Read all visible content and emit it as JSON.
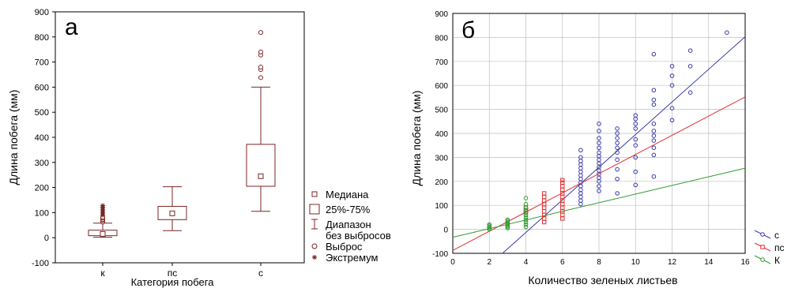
{
  "colors": {
    "box": "#7b2424",
    "axis": "#000000",
    "grid": "#bfbfbf",
    "series_c": "#3b3ba8",
    "series_pc": "#e03030",
    "series_k": "#2e9b2e"
  },
  "chart_data": [
    {
      "type": "box",
      "panel_label": "а",
      "title": "",
      "xlabel": "Категория побега",
      "ylabel": "Длина побега (мм)",
      "ylim": [
        -100,
        900
      ],
      "yticks": [
        -100,
        0,
        100,
        200,
        300,
        400,
        500,
        600,
        700,
        800,
        900
      ],
      "categories": [
        "к",
        "пс",
        "с"
      ],
      "grid": false,
      "legend_position": "right",
      "legend": [
        {
          "symbol": "small-square",
          "label": "Медиана"
        },
        {
          "symbol": "box",
          "label": "25%-75%"
        },
        {
          "symbol": "whisker",
          "label": "Диапазон"
        },
        {
          "symbol": "whisker",
          "label": "без выбросов"
        },
        {
          "symbol": "circle",
          "label": "Выброс"
        },
        {
          "symbol": "asterisk",
          "label": "Экстремум"
        }
      ],
      "boxes": [
        {
          "category": "к",
          "whisker_low": 2,
          "q1": 8,
          "median": 15,
          "q3": 30,
          "whisker_high": 58,
          "outliers": [
            62,
            68,
            72,
            78,
            82
          ],
          "extremes": [
            90,
            98,
            105,
            112,
            120,
            128
          ]
        },
        {
          "category": "пс",
          "whisker_low": 28,
          "q1": 72,
          "median": 97,
          "q3": 125,
          "whisker_high": 203,
          "outliers": [],
          "extremes": []
        },
        {
          "category": "с",
          "whisker_low": 105,
          "q1": 205,
          "median": 245,
          "q3": 372,
          "whisker_high": 600,
          "outliers": [
            638,
            670,
            680,
            728,
            740,
            818
          ],
          "extremes": []
        }
      ]
    },
    {
      "type": "scatter",
      "panel_label": "б",
      "title": "",
      "xlabel": "Количество зеленых листьев",
      "ylabel": "Длина побега (мм)",
      "xlim": [
        0,
        16
      ],
      "ylim": [
        -100,
        900
      ],
      "xticks": [
        0,
        2,
        4,
        6,
        8,
        10,
        12,
        14,
        16
      ],
      "yticks": [
        -100,
        0,
        100,
        200,
        300,
        400,
        500,
        600,
        700,
        800,
        900
      ],
      "grid": true,
      "legend_position": "bottom-right",
      "series": [
        {
          "name": "с",
          "color": "#3b3ba8",
          "marker": "circle",
          "fit": {
            "slope": 68,
            "intercept": -285
          },
          "points": [
            [
              7,
              105
            ],
            [
              7,
              120
            ],
            [
              7,
              135
            ],
            [
              7,
              150
            ],
            [
              7,
              165
            ],
            [
              7,
              180
            ],
            [
              7,
              195
            ],
            [
              7,
              210
            ],
            [
              7,
              225
            ],
            [
              7,
              240
            ],
            [
              7,
              255
            ],
            [
              7,
              270
            ],
            [
              7,
              285
            ],
            [
              7,
              300
            ],
            [
              7,
              330
            ],
            [
              8,
              160
            ],
            [
              8,
              180
            ],
            [
              8,
              200
            ],
            [
              8,
              215
            ],
            [
              8,
              230
            ],
            [
              8,
              245
            ],
            [
              8,
              260
            ],
            [
              8,
              275
            ],
            [
              8,
              290
            ],
            [
              8,
              305
            ],
            [
              8,
              320
            ],
            [
              8,
              340
            ],
            [
              8,
              360
            ],
            [
              8,
              380
            ],
            [
              8,
              410
            ],
            [
              8,
              440
            ],
            [
              9,
              150
            ],
            [
              9,
              210
            ],
            [
              9,
              250
            ],
            [
              9,
              290
            ],
            [
              9,
              320
            ],
            [
              9,
              340
            ],
            [
              9,
              360
            ],
            [
              9,
              380
            ],
            [
              9,
              400
            ],
            [
              9,
              420
            ],
            [
              10,
              185
            ],
            [
              10,
              240
            ],
            [
              10,
              300
            ],
            [
              10,
              350
            ],
            [
              10,
              375
            ],
            [
              10,
              420
            ],
            [
              10,
              440
            ],
            [
              10,
              460
            ],
            [
              10,
              475
            ],
            [
              11,
              220
            ],
            [
              11,
              310
            ],
            [
              11,
              340
            ],
            [
              11,
              370
            ],
            [
              11,
              390
            ],
            [
              11,
              410
            ],
            [
              11,
              440
            ],
            [
              11,
              520
            ],
            [
              11,
              540
            ],
            [
              11,
              580
            ],
            [
              11,
              730
            ],
            [
              12,
              455
            ],
            [
              12,
              505
            ],
            [
              12,
              600
            ],
            [
              12,
              640
            ],
            [
              12,
              680
            ],
            [
              13,
              570
            ],
            [
              13,
              680
            ],
            [
              13,
              745
            ],
            [
              15,
              820
            ]
          ]
        },
        {
          "name": "пс",
          "color": "#e03030",
          "marker": "square",
          "fit": {
            "slope": 40,
            "intercept": -88
          },
          "points": [
            [
              4,
              70
            ],
            [
              4,
              80
            ],
            [
              4,
              90
            ],
            [
              5,
              30
            ],
            [
              5,
              45
            ],
            [
              5,
              60
            ],
            [
              5,
              75
            ],
            [
              5,
              90
            ],
            [
              5,
              105
            ],
            [
              5,
              120
            ],
            [
              5,
              135
            ],
            [
              5,
              150
            ],
            [
              6,
              45
            ],
            [
              6,
              60
            ],
            [
              6,
              75
            ],
            [
              6,
              90
            ],
            [
              6,
              105
            ],
            [
              6,
              120
            ],
            [
              6,
              135
            ],
            [
              6,
              150
            ],
            [
              6,
              165
            ],
            [
              6,
              180
            ],
            [
              6,
              195
            ],
            [
              6,
              205
            ]
          ]
        },
        {
          "name": "К",
          "color": "#2e9b2e",
          "marker": "circle",
          "fit": {
            "slope": 18,
            "intercept": -33
          },
          "points": [
            [
              2,
              0
            ],
            [
              2,
              5
            ],
            [
              2,
              10
            ],
            [
              2,
              15
            ],
            [
              2,
              20
            ],
            [
              3,
              5
            ],
            [
              3,
              10
            ],
            [
              3,
              15
            ],
            [
              3,
              20
            ],
            [
              3,
              25
            ],
            [
              3,
              30
            ],
            [
              3,
              35
            ],
            [
              3,
              40
            ],
            [
              4,
              10
            ],
            [
              4,
              20
            ],
            [
              4,
              30
            ],
            [
              4,
              40
            ],
            [
              4,
              50
            ],
            [
              4,
              60
            ],
            [
              4,
              70
            ],
            [
              4,
              80
            ],
            [
              4,
              90
            ],
            [
              4,
              105
            ],
            [
              4,
              130
            ]
          ]
        }
      ]
    }
  ]
}
